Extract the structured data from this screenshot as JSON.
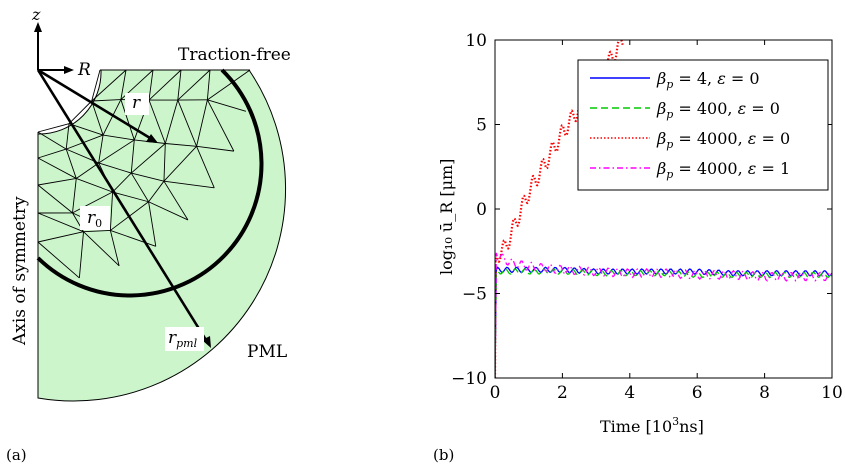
{
  "panel_a": {
    "label": "(a)",
    "axis_z": "z",
    "axis_R": "R",
    "top_label": "Traction-free",
    "left_label": "Axis of symmetry",
    "pml_label": "PML",
    "r_label": "r",
    "r0_label": "r",
    "r0_sub": "0",
    "rpml_label": "r",
    "rpml_sub": "pml",
    "mesh_fill": "#ccf5cc"
  },
  "panel_b": {
    "label": "(b)",
    "xlabel": "Time [10",
    "xlabel_sup": "3",
    "xlabel_end": "ns]",
    "ylabel": "log₁₀ ū_R  [μm]"
  },
  "chart_data": {
    "type": "line",
    "xlim": [
      0,
      10
    ],
    "ylim": [
      -10,
      10
    ],
    "xticks": [
      "0",
      "2",
      "4",
      "6",
      "8",
      "10"
    ],
    "yticks": [
      "−10",
      "−5",
      "0",
      "5",
      "10"
    ],
    "legend_position": "top-right",
    "grid": false,
    "series": [
      {
        "name": "β_p = 4, ε = 0",
        "color": "#0000ff",
        "dash": "",
        "x": [
          0,
          0.01,
          0.02,
          0.2,
          1,
          2,
          3,
          4,
          5,
          6,
          7,
          8,
          9,
          10
        ],
        "y": [
          -10,
          -3.0,
          -3.6,
          -3.6,
          -3.6,
          -3.6,
          -3.7,
          -3.7,
          -3.7,
          -3.7,
          -3.8,
          -3.8,
          -3.8,
          -3.8
        ]
      },
      {
        "name": "β_p = 400, ε = 0",
        "color": "#00cc00",
        "dash": "7,4",
        "x": [
          0,
          0.01,
          0.02,
          0.2,
          1,
          2,
          3,
          4,
          5,
          6,
          7,
          8,
          9,
          10
        ],
        "y": [
          -10,
          -3.1,
          -3.7,
          -3.7,
          -3.7,
          -3.7,
          -3.8,
          -3.8,
          -3.8,
          -3.9,
          -3.9,
          -3.9,
          -3.9,
          -3.9
        ]
      },
      {
        "name": "β_p = 4000, ε = 0",
        "color": "#ff0000",
        "dash": "1.5,2",
        "x": [
          0,
          0.01,
          0.3,
          1,
          2,
          3,
          3.8
        ],
        "y": [
          -10,
          -2.8,
          -2.3,
          1.0,
          4.5,
          7.5,
          10
        ]
      },
      {
        "name": "β_p = 4000, ε = 1",
        "color": "#ff00ff",
        "dash": "6,3,1.5,3",
        "x": [
          0,
          0.01,
          0.1,
          0.5,
          1,
          2,
          3,
          4,
          5,
          6,
          7,
          8,
          9,
          10
        ],
        "y": [
          -10,
          -2.5,
          -2.8,
          -3.2,
          -3.4,
          -3.6,
          -3.7,
          -3.8,
          -3.8,
          -3.9,
          -3.9,
          -4.0,
          -4.0,
          -4.0
        ]
      }
    ],
    "legend_labels": [
      {
        "base": "β",
        "sub": "p",
        "rest": " = 4, ",
        "eps": "ε",
        "end": " = 0"
      },
      {
        "base": "β",
        "sub": "p",
        "rest": " = 400, ",
        "eps": "ε",
        "end": " = 0"
      },
      {
        "base": "β",
        "sub": "p",
        "rest": " = 4000, ",
        "eps": "ε",
        "end": " = 0"
      },
      {
        "base": "β",
        "sub": "p",
        "rest": " = 4000, ",
        "eps": "ε",
        "end": " = 1"
      }
    ]
  }
}
